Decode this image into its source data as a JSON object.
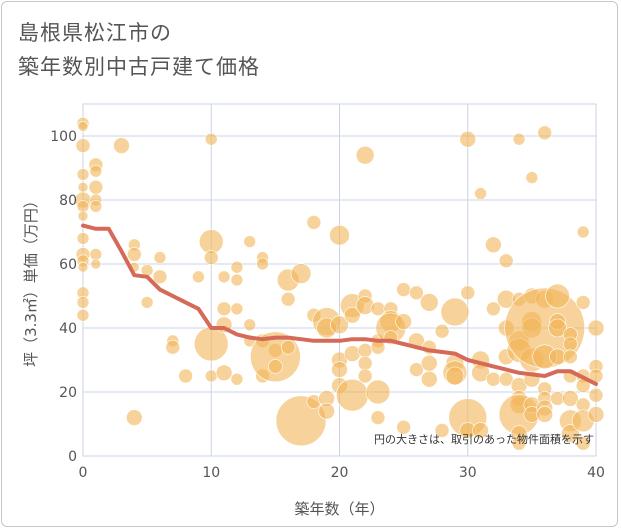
{
  "title_line1": "島根県松江市の",
  "title_line2": "築年数別中古戸建て価格",
  "chart_data": {
    "type": "scatter",
    "xlabel": "築年数（年）",
    "ylabel": "坪（3.3㎡）単価（万円）",
    "xlim": [
      0,
      40
    ],
    "ylim": [
      0,
      110
    ],
    "x_ticks": [
      0,
      10,
      20,
      30,
      40
    ],
    "y_ticks": [
      0,
      20,
      40,
      60,
      80,
      100
    ],
    "grid": true,
    "note": "円の大きさは、取引のあった物件面積を示す",
    "colors": {
      "bubble": "#f1b659",
      "line": "#d56a58",
      "grid": "#c9d3e6"
    },
    "trend": {
      "x": [
        0,
        1,
        2,
        3,
        4,
        5,
        6,
        7,
        8,
        9,
        10,
        11,
        12,
        13,
        14,
        15,
        16,
        17,
        18,
        19,
        20,
        21,
        22,
        23,
        24,
        25,
        26,
        27,
        28,
        29,
        30,
        31,
        32,
        33,
        34,
        35,
        36,
        37,
        38,
        39,
        40
      ],
      "y": [
        72,
        71,
        71,
        64,
        56.5,
        56,
        52,
        50,
        48,
        46,
        40,
        40,
        38,
        37,
        36.5,
        37,
        37,
        36.5,
        36,
        36,
        36,
        36.5,
        36.5,
        36,
        36,
        35,
        34,
        33,
        32.5,
        32,
        30,
        29,
        28,
        27,
        26,
        25.5,
        25,
        26.5,
        26.5,
        24.5,
        22.5
      ]
    },
    "points": [
      {
        "x": 0,
        "y": 104,
        "r": 6
      },
      {
        "x": 0,
        "y": 103,
        "r": 5
      },
      {
        "x": 0,
        "y": 97,
        "r": 7
      },
      {
        "x": 0,
        "y": 88,
        "r": 6
      },
      {
        "x": 0,
        "y": 84,
        "r": 5
      },
      {
        "x": 0,
        "y": 80,
        "r": 8
      },
      {
        "x": 0,
        "y": 78,
        "r": 6
      },
      {
        "x": 0,
        "y": 75,
        "r": 5
      },
      {
        "x": 0,
        "y": 68,
        "r": 6
      },
      {
        "x": 0,
        "y": 63,
        "r": 7
      },
      {
        "x": 0,
        "y": 61,
        "r": 6
      },
      {
        "x": 0,
        "y": 59,
        "r": 5
      },
      {
        "x": 0,
        "y": 51,
        "r": 6
      },
      {
        "x": 0,
        "y": 48,
        "r": 6
      },
      {
        "x": 0,
        "y": 44,
        "r": 6
      },
      {
        "x": 1,
        "y": 91,
        "r": 7
      },
      {
        "x": 1,
        "y": 89,
        "r": 6
      },
      {
        "x": 1,
        "y": 84,
        "r": 7
      },
      {
        "x": 1,
        "y": 80,
        "r": 6
      },
      {
        "x": 1,
        "y": 78,
        "r": 6
      },
      {
        "x": 1,
        "y": 63,
        "r": 6
      },
      {
        "x": 1,
        "y": 60,
        "r": 5
      },
      {
        "x": 3,
        "y": 97,
        "r": 8
      },
      {
        "x": 4,
        "y": 66,
        "r": 6
      },
      {
        "x": 4,
        "y": 63,
        "r": 7
      },
      {
        "x": 4,
        "y": 59,
        "r": 5
      },
      {
        "x": 4,
        "y": 12,
        "r": 8
      },
      {
        "x": 5,
        "y": 58,
        "r": 6
      },
      {
        "x": 5,
        "y": 48,
        "r": 6
      },
      {
        "x": 6,
        "y": 62,
        "r": 6
      },
      {
        "x": 6,
        "y": 56,
        "r": 7
      },
      {
        "x": 7,
        "y": 36,
        "r": 6
      },
      {
        "x": 7,
        "y": 34,
        "r": 7
      },
      {
        "x": 8,
        "y": 25,
        "r": 7
      },
      {
        "x": 9,
        "y": 56,
        "r": 6
      },
      {
        "x": 10,
        "y": 99,
        "r": 6
      },
      {
        "x": 10,
        "y": 67,
        "r": 12
      },
      {
        "x": 10,
        "y": 62,
        "r": 7
      },
      {
        "x": 10,
        "y": 35,
        "r": 17
      },
      {
        "x": 10,
        "y": 25,
        "r": 6
      },
      {
        "x": 11,
        "y": 56,
        "r": 6
      },
      {
        "x": 11,
        "y": 46,
        "r": 7
      },
      {
        "x": 11,
        "y": 41,
        "r": 8
      },
      {
        "x": 11,
        "y": 26,
        "r": 8
      },
      {
        "x": 12,
        "y": 59,
        "r": 6
      },
      {
        "x": 12,
        "y": 55,
        "r": 6
      },
      {
        "x": 12,
        "y": 46,
        "r": 6
      },
      {
        "x": 12,
        "y": 24,
        "r": 6
      },
      {
        "x": 13,
        "y": 67,
        "r": 6
      },
      {
        "x": 13,
        "y": 41,
        "r": 6
      },
      {
        "x": 13,
        "y": 36,
        "r": 6
      },
      {
        "x": 14,
        "y": 62,
        "r": 6
      },
      {
        "x": 14,
        "y": 60,
        "r": 6
      },
      {
        "x": 14,
        "y": 36,
        "r": 7
      },
      {
        "x": 14,
        "y": 25,
        "r": 7
      },
      {
        "x": 15,
        "y": 33,
        "r": 7
      },
      {
        "x": 15,
        "y": 31,
        "r": 25
      },
      {
        "x": 15,
        "y": 28,
        "r": 7
      },
      {
        "x": 16,
        "y": 55,
        "r": 11
      },
      {
        "x": 16,
        "y": 49,
        "r": 7
      },
      {
        "x": 16,
        "y": 34,
        "r": 7
      },
      {
        "x": 17,
        "y": 57,
        "r": 10
      },
      {
        "x": 17,
        "y": 11,
        "r": 25
      },
      {
        "x": 18,
        "y": 73,
        "r": 7
      },
      {
        "x": 18,
        "y": 44,
        "r": 7
      },
      {
        "x": 18,
        "y": 17,
        "r": 7
      },
      {
        "x": 19,
        "y": 42,
        "r": 14
      },
      {
        "x": 19,
        "y": 40,
        "r": 10
      },
      {
        "x": 19,
        "y": 18,
        "r": 8
      },
      {
        "x": 19,
        "y": 14,
        "r": 8
      },
      {
        "x": 20,
        "y": 69,
        "r": 10
      },
      {
        "x": 20,
        "y": 41,
        "r": 9
      },
      {
        "x": 20,
        "y": 30,
        "r": 8
      },
      {
        "x": 20,
        "y": 27,
        "r": 8
      },
      {
        "x": 20,
        "y": 22,
        "r": 8
      },
      {
        "x": 21,
        "y": 47,
        "r": 12
      },
      {
        "x": 21,
        "y": 44,
        "r": 8
      },
      {
        "x": 21,
        "y": 32,
        "r": 8
      },
      {
        "x": 21,
        "y": 19,
        "r": 16
      },
      {
        "x": 22,
        "y": 94,
        "r": 9
      },
      {
        "x": 22,
        "y": 50,
        "r": 7
      },
      {
        "x": 22,
        "y": 47,
        "r": 9
      },
      {
        "x": 22,
        "y": 33,
        "r": 7
      },
      {
        "x": 22,
        "y": 29,
        "r": 7
      },
      {
        "x": 22,
        "y": 25,
        "r": 7
      },
      {
        "x": 23,
        "y": 46,
        "r": 7
      },
      {
        "x": 23,
        "y": 36,
        "r": 7
      },
      {
        "x": 23,
        "y": 34,
        "r": 7
      },
      {
        "x": 23,
        "y": 20,
        "r": 12
      },
      {
        "x": 23,
        "y": 12,
        "r": 7
      },
      {
        "x": 24,
        "y": 46,
        "r": 7
      },
      {
        "x": 24,
        "y": 42,
        "r": 11
      },
      {
        "x": 24,
        "y": 40,
        "r": 15
      },
      {
        "x": 24,
        "y": 37,
        "r": 7
      },
      {
        "x": 25,
        "y": 52,
        "r": 7
      },
      {
        "x": 25,
        "y": 42,
        "r": 8
      },
      {
        "x": 25,
        "y": 9,
        "r": 7
      },
      {
        "x": 26,
        "y": 51,
        "r": 7
      },
      {
        "x": 26,
        "y": 36,
        "r": 8
      },
      {
        "x": 26,
        "y": 27,
        "r": 7
      },
      {
        "x": 27,
        "y": 48,
        "r": 9
      },
      {
        "x": 27,
        "y": 34,
        "r": 7
      },
      {
        "x": 27,
        "y": 29,
        "r": 8
      },
      {
        "x": 27,
        "y": 24,
        "r": 8
      },
      {
        "x": 28,
        "y": 39,
        "r": 7
      },
      {
        "x": 28,
        "y": 8,
        "r": 7
      },
      {
        "x": 29,
        "y": 45,
        "r": 14
      },
      {
        "x": 29,
        "y": 29,
        "r": 9
      },
      {
        "x": 29,
        "y": 26,
        "r": 12
      },
      {
        "x": 29,
        "y": 25,
        "r": 9
      },
      {
        "x": 30,
        "y": 99,
        "r": 8
      },
      {
        "x": 30,
        "y": 51,
        "r": 7
      },
      {
        "x": 30,
        "y": 12,
        "r": 19
      },
      {
        "x": 30,
        "y": 8,
        "r": 8
      },
      {
        "x": 31,
        "y": 82,
        "r": 6
      },
      {
        "x": 31,
        "y": 30,
        "r": 9
      },
      {
        "x": 31,
        "y": 26,
        "r": 9
      },
      {
        "x": 31,
        "y": 8,
        "r": 8
      },
      {
        "x": 32,
        "y": 66,
        "r": 8
      },
      {
        "x": 32,
        "y": 46,
        "r": 7
      },
      {
        "x": 32,
        "y": 24,
        "r": 7
      },
      {
        "x": 33,
        "y": 61,
        "r": 7
      },
      {
        "x": 33,
        "y": 49,
        "r": 9
      },
      {
        "x": 33,
        "y": 40,
        "r": 8
      },
      {
        "x": 33,
        "y": 31,
        "r": 8
      },
      {
        "x": 33,
        "y": 24,
        "r": 7
      },
      {
        "x": 34,
        "y": 99,
        "r": 6
      },
      {
        "x": 34,
        "y": 49,
        "r": 7
      },
      {
        "x": 34,
        "y": 36,
        "r": 10
      },
      {
        "x": 34,
        "y": 33,
        "r": 12
      },
      {
        "x": 34,
        "y": 22,
        "r": 8
      },
      {
        "x": 34,
        "y": 18,
        "r": 8
      },
      {
        "x": 34,
        "y": 16,
        "r": 9
      },
      {
        "x": 34,
        "y": 13,
        "r": 20
      },
      {
        "x": 34,
        "y": 7,
        "r": 8
      },
      {
        "x": 34,
        "y": 4,
        "r": 7
      },
      {
        "x": 35,
        "y": 87,
        "r": 6
      },
      {
        "x": 35,
        "y": 50,
        "r": 8
      },
      {
        "x": 35,
        "y": 42,
        "r": 10
      },
      {
        "x": 35,
        "y": 40,
        "r": 10
      },
      {
        "x": 35,
        "y": 30,
        "r": 12
      },
      {
        "x": 35,
        "y": 24,
        "r": 8
      },
      {
        "x": 35,
        "y": 16,
        "r": 8
      },
      {
        "x": 35,
        "y": 13,
        "r": 8
      },
      {
        "x": 36,
        "y": 101,
        "r": 7
      },
      {
        "x": 36,
        "y": 49,
        "r": 9
      },
      {
        "x": 36,
        "y": 40,
        "r": 40
      },
      {
        "x": 36,
        "y": 31,
        "r": 12
      },
      {
        "x": 36,
        "y": 21,
        "r": 7
      },
      {
        "x": 36,
        "y": 18,
        "r": 7
      },
      {
        "x": 36,
        "y": 15,
        "r": 8
      },
      {
        "x": 36,
        "y": 13,
        "r": 8
      },
      {
        "x": 37,
        "y": 50,
        "r": 12
      },
      {
        "x": 37,
        "y": 42,
        "r": 8
      },
      {
        "x": 37,
        "y": 40,
        "r": 9
      },
      {
        "x": 37,
        "y": 31,
        "r": 8
      },
      {
        "x": 37,
        "y": 18,
        "r": 7
      },
      {
        "x": 38,
        "y": 38,
        "r": 7
      },
      {
        "x": 38,
        "y": 35,
        "r": 7
      },
      {
        "x": 38,
        "y": 31,
        "r": 7
      },
      {
        "x": 38,
        "y": 25,
        "r": 7
      },
      {
        "x": 38,
        "y": 18,
        "r": 8
      },
      {
        "x": 38,
        "y": 11,
        "r": 11
      },
      {
        "x": 38,
        "y": 7,
        "r": 9
      },
      {
        "x": 39,
        "y": 70,
        "r": 6
      },
      {
        "x": 39,
        "y": 48,
        "r": 7
      },
      {
        "x": 39,
        "y": 25,
        "r": 7
      },
      {
        "x": 39,
        "y": 22,
        "r": 7
      },
      {
        "x": 39,
        "y": 16,
        "r": 7
      },
      {
        "x": 39,
        "y": 11,
        "r": 11
      },
      {
        "x": 39,
        "y": 4,
        "r": 7
      },
      {
        "x": 40,
        "y": 40,
        "r": 8
      },
      {
        "x": 40,
        "y": 28,
        "r": 7
      },
      {
        "x": 40,
        "y": 25,
        "r": 7
      },
      {
        "x": 40,
        "y": 19,
        "r": 7
      },
      {
        "x": 40,
        "y": 13,
        "r": 8
      }
    ]
  }
}
